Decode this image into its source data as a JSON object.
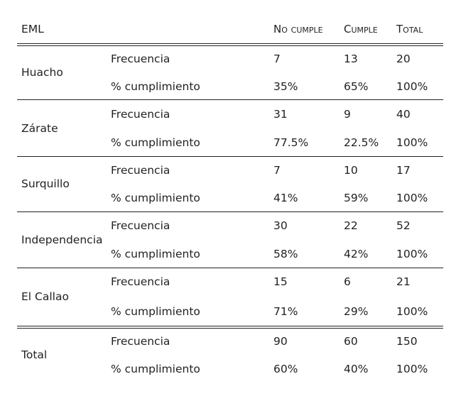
{
  "header": {
    "eml": "EML",
    "no_cumple": "No cumple",
    "cumple": "Cumple",
    "total": "Total"
  },
  "groups": [
    {
      "name": "Huacho",
      "rows": [
        {
          "label": "Frecuencia",
          "no_cumple": "7",
          "cumple": "13",
          "total": "20"
        },
        {
          "label": "% cumplimiento",
          "no_cumple": "35%",
          "cumple": "65%",
          "total": "100%"
        }
      ]
    },
    {
      "name": "Zárate",
      "rows": [
        {
          "label": "Frecuencia",
          "no_cumple": "31",
          "cumple": "9",
          "total": "40"
        },
        {
          "label": "% cumplimiento",
          "no_cumple": "77.5%",
          "cumple": "22.5%",
          "total": "100%"
        }
      ]
    },
    {
      "name": "Surquillo",
      "rows": [
        {
          "label": "Frecuencia",
          "no_cumple": "7",
          "cumple": "10",
          "total": "17"
        },
        {
          "label": "% cumplimiento",
          "no_cumple": "41%",
          "cumple": "59%",
          "total": "100%"
        }
      ]
    },
    {
      "name": "Independencia",
      "rows": [
        {
          "label": "Frecuencia",
          "no_cumple": "30",
          "cumple": "22",
          "total": "52"
        },
        {
          "label": "% cumplimiento",
          "no_cumple": "58%",
          "cumple": "42%",
          "total": "100%"
        }
      ]
    },
    {
      "name": "El Callao",
      "rows": [
        {
          "label": "Frecuencia",
          "no_cumple": "15",
          "cumple": "6",
          "total": "21"
        },
        {
          "label": "% cumplimiento",
          "no_cumple": "71%",
          "cumple": "29%",
          "total": "100%"
        }
      ]
    },
    {
      "name": "Total",
      "rows": [
        {
          "label": "Frecuencia",
          "no_cumple": "90",
          "cumple": "60",
          "total": "150"
        },
        {
          "label": "% cumplimiento",
          "no_cumple": "60%",
          "cumple": "40%",
          "total": "100%"
        }
      ]
    }
  ]
}
